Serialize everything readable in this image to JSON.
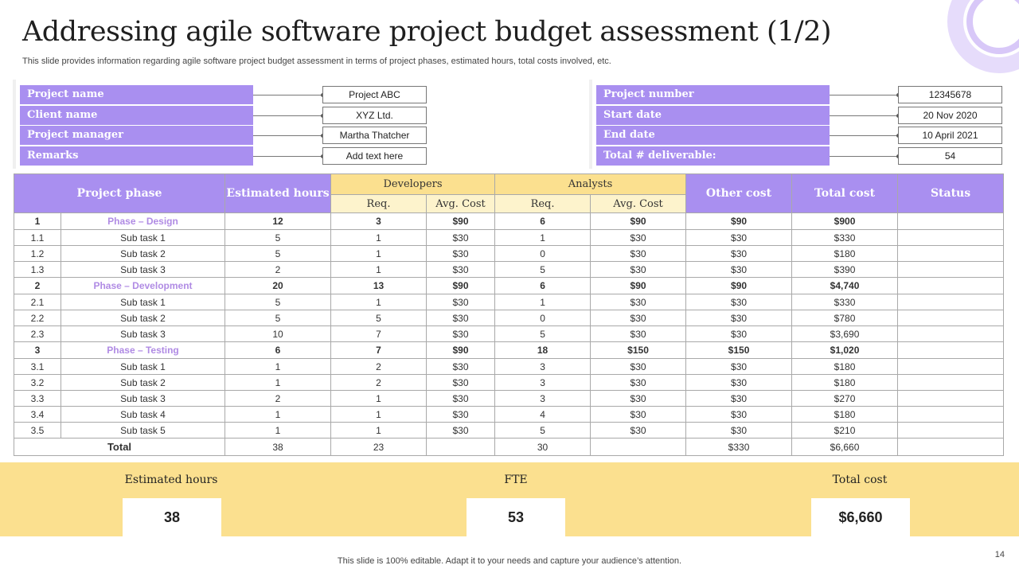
{
  "title": "Addressing agile software project budget assessment (1/2)",
  "subtitle": "This slide provides information regarding agile software project budget assessment in terms of project phases, estimated hours, total costs involved, etc.",
  "info_left": [
    {
      "label": "Project name",
      "value": "Project ABC"
    },
    {
      "label": "Client name",
      "value": "XYZ  Ltd."
    },
    {
      "label": "Project manager",
      "value": "Martha Thatcher"
    },
    {
      "label": "Remarks",
      "value": "Add text here"
    }
  ],
  "info_right": [
    {
      "label": "Project number",
      "value": "12345678"
    },
    {
      "label": "Start date",
      "value": "20 Nov 2020"
    },
    {
      "label": "End date",
      "value": "10 April 2021"
    },
    {
      "label": "Total # deliverable:",
      "value": "54"
    }
  ],
  "table": {
    "headers": {
      "phase": "Project phase",
      "hours": "Estimated hours",
      "developers": "Developers",
      "analysts": "Analysts",
      "req": "Req.",
      "avg_cost": "Avg. Cost",
      "other_cost": "Other cost",
      "total_cost": "Total cost",
      "status": "Status"
    },
    "rows": [
      {
        "kind": "phase",
        "id": "1",
        "name": "Phase – Design",
        "hours": "12",
        "dev_req": "3",
        "dev_cost": "$90",
        "an_req": "6",
        "an_cost": "$90",
        "other": "$90",
        "total": "$900",
        "status": ""
      },
      {
        "kind": "task",
        "id": "1.1",
        "name": "Sub task 1",
        "hours": "5",
        "dev_req": "1",
        "dev_cost": "$30",
        "an_req": "1",
        "an_cost": "$30",
        "other": "$30",
        "total": "$330",
        "status": ""
      },
      {
        "kind": "task",
        "id": "1.2",
        "name": "Sub task 2",
        "hours": "5",
        "dev_req": "1",
        "dev_cost": "$30",
        "an_req": "0",
        "an_cost": "$30",
        "other": "$30",
        "total": "$180",
        "status": ""
      },
      {
        "kind": "task",
        "id": "1.3",
        "name": "Sub task 3",
        "hours": "2",
        "dev_req": "1",
        "dev_cost": "$30",
        "an_req": "5",
        "an_cost": "$30",
        "other": "$30",
        "total": "$390",
        "status": ""
      },
      {
        "kind": "phase",
        "id": "2",
        "name": "Phase – Development",
        "hours": "20",
        "dev_req": "13",
        "dev_cost": "$90",
        "an_req": "6",
        "an_cost": "$90",
        "other": "$90",
        "total": "$4,740",
        "status": ""
      },
      {
        "kind": "task",
        "id": "2.1",
        "name": "Sub task 1",
        "hours": "5",
        "dev_req": "1",
        "dev_cost": "$30",
        "an_req": "1",
        "an_cost": "$30",
        "other": "$30",
        "total": "$330",
        "status": ""
      },
      {
        "kind": "task",
        "id": "2.2",
        "name": "Sub task 2",
        "hours": "5",
        "dev_req": "5",
        "dev_cost": "$30",
        "an_req": "0",
        "an_cost": "$30",
        "other": "$30",
        "total": "$780",
        "status": ""
      },
      {
        "kind": "task",
        "id": "2.3",
        "name": "Sub task 3",
        "hours": "10",
        "dev_req": "7",
        "dev_cost": "$30",
        "an_req": "5",
        "an_cost": "$30",
        "other": "$30",
        "total": "$3,690",
        "status": ""
      },
      {
        "kind": "phase",
        "id": "3",
        "name": "Phase – Testing",
        "hours": "6",
        "dev_req": "7",
        "dev_cost": "$90",
        "an_req": "18",
        "an_cost": "$150",
        "other": "$150",
        "total": "$1,020",
        "status": ""
      },
      {
        "kind": "task",
        "id": "3.1",
        "name": "Sub task 1",
        "hours": "1",
        "dev_req": "2",
        "dev_cost": "$30",
        "an_req": "3",
        "an_cost": "$30",
        "other": "$30",
        "total": "$180",
        "status": ""
      },
      {
        "kind": "task",
        "id": "3.2",
        "name": "Sub task 2",
        "hours": "1",
        "dev_req": "2",
        "dev_cost": "$30",
        "an_req": "3",
        "an_cost": "$30",
        "other": "$30",
        "total": "$180",
        "status": ""
      },
      {
        "kind": "task",
        "id": "3.3",
        "name": "Sub task 3",
        "hours": "2",
        "dev_req": "1",
        "dev_cost": "$30",
        "an_req": "3",
        "an_cost": "$30",
        "other": "$30",
        "total": "$270",
        "status": ""
      },
      {
        "kind": "task",
        "id": "3.4",
        "name": "Sub task 4",
        "hours": "1",
        "dev_req": "1",
        "dev_cost": "$30",
        "an_req": "4",
        "an_cost": "$30",
        "other": "$30",
        "total": "$180",
        "status": ""
      },
      {
        "kind": "task",
        "id": "3.5",
        "name": "Sub task 5",
        "hours": "1",
        "dev_req": "1",
        "dev_cost": "$30",
        "an_req": "5",
        "an_cost": "$30",
        "other": "$30",
        "total": "$210",
        "status": ""
      }
    ],
    "total": {
      "label": "Total",
      "hours": "38",
      "dev_req": "23",
      "dev_cost": "",
      "an_req": "30",
      "an_cost": "",
      "other": "$330",
      "total": "$6,660",
      "status": ""
    }
  },
  "summary": {
    "hours_label": "Estimated hours",
    "hours_value": "38",
    "fte_label": "FTE",
    "fte_value": "53",
    "cost_label": "Total cost",
    "cost_value": "$6,660"
  },
  "footer": "This slide is 100% editable. Adapt it to your needs and capture your audience’s attention.",
  "page_number": "14",
  "colors": {
    "purple": "#a98ff0",
    "phase_text": "#b08be4",
    "yellow": "#fbe08f",
    "light_yellow": "#fdf3cc"
  }
}
